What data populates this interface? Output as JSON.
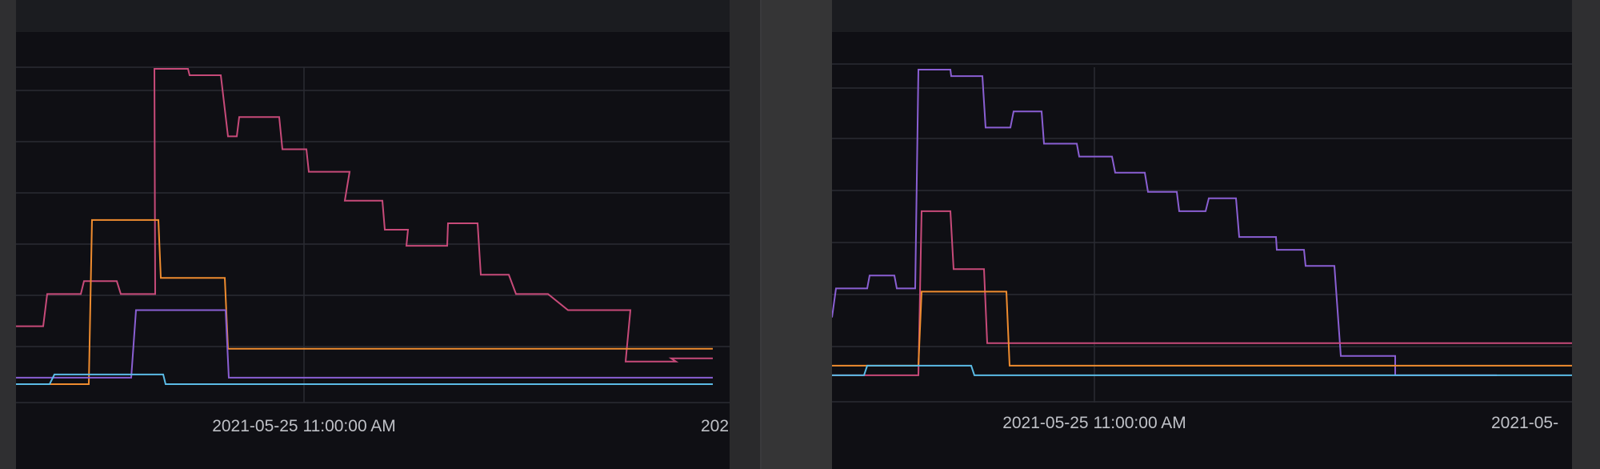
{
  "colors": {
    "pink": "#c74a79",
    "orange": "#ef8c2f",
    "purple": "#8a5fd3",
    "cyan": "#5bbbe6",
    "grid": "#2a2b33",
    "tick_text": "#bfc1c7"
  },
  "chart_data": [
    {
      "type": "line",
      "title": "",
      "xlabel": "",
      "ylabel": "",
      "grid": true,
      "x_tick_labels": [
        "2021-05-25 11:00:00 AM",
        "202"
      ],
      "series": [
        {
          "color": "pink",
          "step": true,
          "x": [
            0,
            34,
            39,
            81,
            85,
            126,
            131,
            174,
            173,
            215,
            217,
            256,
            265,
            276,
            279,
            329,
            333,
            363,
            366,
            417,
            411,
            458,
            461,
            490,
            488,
            539,
            540,
            577,
            581,
            616,
            625,
            665,
            690,
            768,
            762,
            825,
            819,
            871
          ],
          "y": [
            0.2,
            0.2,
            0.3,
            0.3,
            0.34,
            0.34,
            0.3,
            0.3,
            1.0,
            1.0,
            0.98,
            0.98,
            0.79,
            0.79,
            0.85,
            0.85,
            0.75,
            0.75,
            0.68,
            0.68,
            0.59,
            0.59,
            0.5,
            0.5,
            0.45,
            0.45,
            0.52,
            0.52,
            0.36,
            0.36,
            0.3,
            0.3,
            0.25,
            0.25,
            0.09,
            0.09,
            0.1,
            0.1
          ]
        },
        {
          "color": "orange",
          "step": true,
          "x": [
            0,
            91,
            95,
            178,
            181,
            261,
            265,
            871
          ],
          "y": [
            0.02,
            0.02,
            0.53,
            0.53,
            0.35,
            0.35,
            0.13,
            0.13
          ]
        },
        {
          "color": "purple",
          "step": true,
          "x": [
            0,
            144,
            150,
            262,
            266,
            871
          ],
          "y": [
            0.04,
            0.04,
            0.25,
            0.25,
            0.04,
            0.04
          ]
        },
        {
          "color": "cyan",
          "step": true,
          "x": [
            0,
            42,
            48,
            184,
            187,
            871
          ],
          "y": [
            0.02,
            0.02,
            0.05,
            0.05,
            0.02,
            0.02
          ]
        }
      ]
    },
    {
      "type": "line",
      "title": "",
      "xlabel": "",
      "ylabel": "",
      "grid": true,
      "x_tick_labels": [
        "2021-05-25 11:00:00 AM",
        "2021-05-"
      ],
      "series": [
        {
          "color": "purple",
          "step": true,
          "x": [
            0,
            5,
            44,
            47,
            78,
            81,
            104,
            108,
            148,
            149,
            188,
            192,
            223,
            227,
            262,
            265,
            306,
            309,
            350,
            354,
            391,
            395,
            431,
            434,
            467,
            471,
            505,
            509,
            555,
            556,
            590,
            592,
            628,
            636,
            704,
            704,
            782,
            785,
            831
          ],
          "y": [
            0.22,
            0.31,
            0.31,
            0.35,
            0.35,
            0.31,
            0.31,
            0.99,
            0.99,
            0.97,
            0.97,
            0.81,
            0.81,
            0.86,
            0.86,
            0.76,
            0.76,
            0.72,
            0.72,
            0.67,
            0.67,
            0.61,
            0.61,
            0.55,
            0.55,
            0.59,
            0.59,
            0.47,
            0.47,
            0.43,
            0.43,
            0.38,
            0.38,
            0.1,
            0.1,
            0.04,
            0.04,
            0.04,
            0.04
          ]
        },
        {
          "color": "pink",
          "step": true,
          "x": [
            0,
            108,
            112,
            148,
            152,
            190,
            194,
            925
          ],
          "y": [
            0.04,
            0.04,
            0.55,
            0.55,
            0.37,
            0.37,
            0.14,
            0.14
          ]
        },
        {
          "color": "orange",
          "step": true,
          "x": [
            0,
            108,
            112,
            218,
            222,
            925
          ],
          "y": [
            0.07,
            0.07,
            0.3,
            0.3,
            0.07,
            0.07
          ]
        },
        {
          "color": "cyan",
          "step": true,
          "x": [
            0,
            40,
            44,
            174,
            178,
            925
          ],
          "y": [
            0.04,
            0.04,
            0.07,
            0.07,
            0.04,
            0.04
          ]
        }
      ]
    }
  ]
}
